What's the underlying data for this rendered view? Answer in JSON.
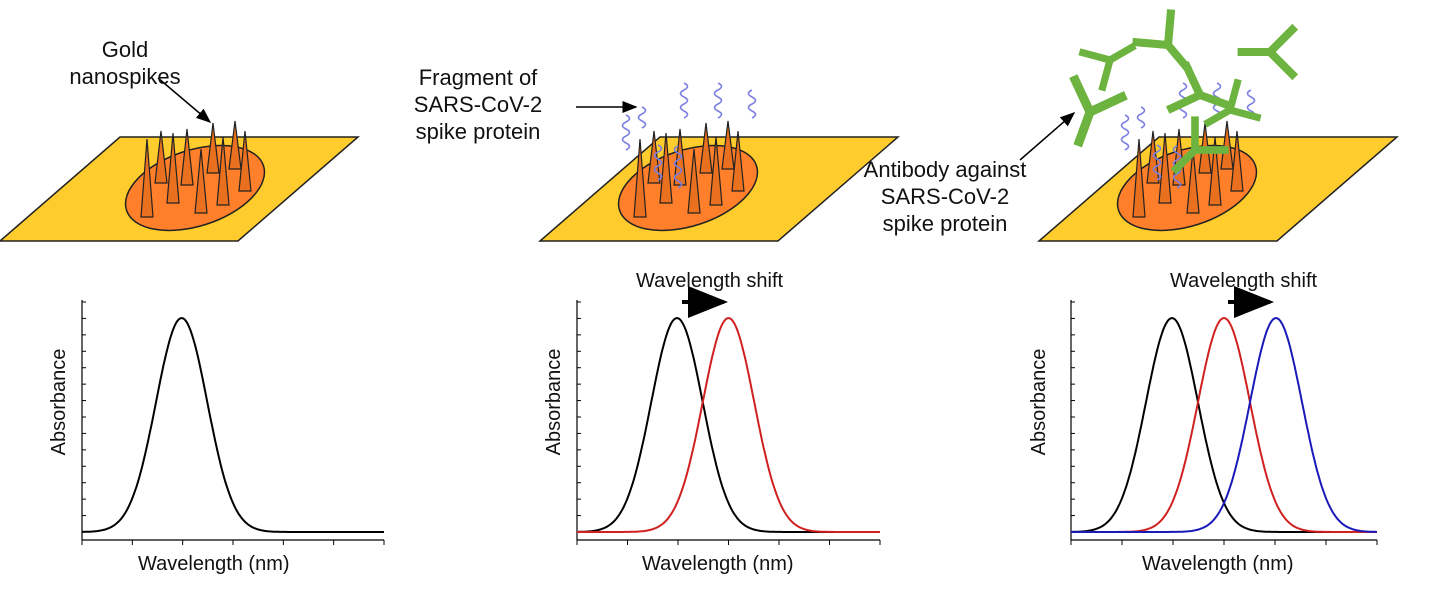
{
  "panel1": {
    "label": "Gold\nnanospikes"
  },
  "panel2": {
    "label": "Fragment of\nSARS-CoV-2\nspike protein",
    "shift_label": "Wavelength shift"
  },
  "panel3": {
    "label": "Antibody against\nSARS-CoV-2\nspike protein",
    "shift_label": "Wavelength shift"
  },
  "colors": {
    "plate": "#FFCC2E",
    "disc": "#FF7F2A",
    "spike": "#E8701E",
    "protein": "#7B7FE0",
    "antibody": "#6DB33F",
    "curve_bare": "#000000",
    "curve_protein": "#D02020",
    "curve_antibody": "#1A1AB8"
  },
  "chart_data": [
    {
      "type": "line",
      "xlabel": "Wavelength (nm)",
      "ylabel": "Absorbance",
      "series": [
        {
          "color": "#000000",
          "peak_x": 0.33,
          "peak_y": 1.0
        }
      ]
    },
    {
      "type": "line",
      "xlabel": "Wavelength (nm)",
      "ylabel": "Absorbance",
      "series": [
        {
          "color": "#000000",
          "peak_x": 0.33,
          "peak_y": 1.0
        },
        {
          "color": "#D02020",
          "peak_x": 0.5,
          "peak_y": 1.0
        }
      ]
    },
    {
      "type": "line",
      "xlabel": "Wavelength (nm)",
      "ylabel": "Absorbance",
      "series": [
        {
          "color": "#000000",
          "peak_x": 0.33,
          "peak_y": 1.0
        },
        {
          "color": "#D02020",
          "peak_x": 0.5,
          "peak_y": 1.0
        },
        {
          "color": "#1A1AB8",
          "peak_x": 0.67,
          "peak_y": 1.0
        }
      ]
    }
  ]
}
